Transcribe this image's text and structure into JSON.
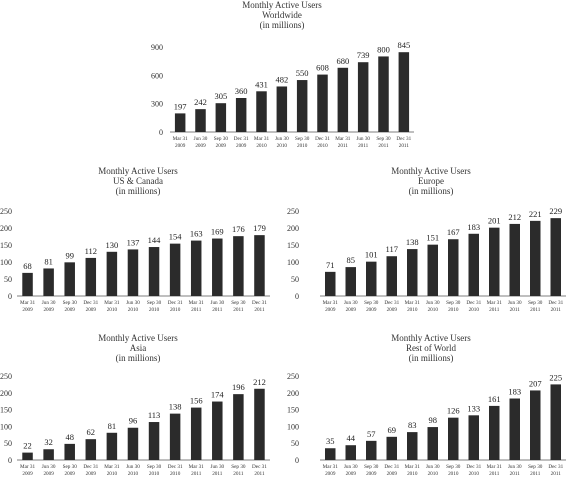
{
  "chart_data": [
    {
      "type": "bar",
      "title": [
        "Monthly Active Users",
        "Worldwide",
        "(in millions)"
      ],
      "categories": [
        [
          "Mar 31",
          "2009"
        ],
        [
          "Jun 30",
          "2009"
        ],
        [
          "Sep 30",
          "2009"
        ],
        [
          "Dec 31",
          "2009"
        ],
        [
          "Mar 31",
          "2010"
        ],
        [
          "Jun 30",
          "2010"
        ],
        [
          "Sep 30",
          "2010"
        ],
        [
          "Dec 31",
          "2010"
        ],
        [
          "Mar 31",
          "2011"
        ],
        [
          "Jun 30",
          "2011"
        ],
        [
          "Sep 30",
          "2011"
        ],
        [
          "Dec 31",
          "2011"
        ]
      ],
      "values": [
        197,
        242,
        305,
        360,
        431,
        482,
        550,
        608,
        680,
        739,
        800,
        845
      ],
      "yticks": [
        0,
        300,
        600,
        900
      ],
      "ylim": [
        0,
        900
      ],
      "grid": false,
      "bar_color": "#2b2b2b"
    },
    {
      "type": "bar",
      "title": [
        "Monthly Active Users",
        "US & Canada",
        "(in millions)"
      ],
      "categories": [
        [
          "Mar 31",
          "2009"
        ],
        [
          "Jun 30",
          "2009"
        ],
        [
          "Sep 30",
          "2009"
        ],
        [
          "Dec 31",
          "2009"
        ],
        [
          "Mar 31",
          "2010"
        ],
        [
          "Jun 30",
          "2010"
        ],
        [
          "Sep 30",
          "2010"
        ],
        [
          "Dec 31",
          "2010"
        ],
        [
          "Mar 31",
          "2011"
        ],
        [
          "Jun 30",
          "2011"
        ],
        [
          "Sep 30",
          "2011"
        ],
        [
          "Dec 31",
          "2011"
        ]
      ],
      "values": [
        68,
        81,
        99,
        112,
        130,
        137,
        144,
        154,
        163,
        169,
        176,
        179
      ],
      "yticks": [
        0,
        50,
        100,
        150,
        200,
        250
      ],
      "ylim": [
        0,
        250
      ],
      "grid": false,
      "bar_color": "#2b2b2b"
    },
    {
      "type": "bar",
      "title": [
        "Monthly Active Users",
        "Europe",
        "(in millions)"
      ],
      "categories": [
        [
          "Mar 31",
          "2009"
        ],
        [
          "Jun 30",
          "2009"
        ],
        [
          "Sep 30",
          "2009"
        ],
        [
          "Dec 31",
          "2009"
        ],
        [
          "Mar 31",
          "2010"
        ],
        [
          "Jun 30",
          "2010"
        ],
        [
          "Sep 30",
          "2010"
        ],
        [
          "Dec 31",
          "2010"
        ],
        [
          "Mar 31",
          "2011"
        ],
        [
          "Jun 30",
          "2011"
        ],
        [
          "Sep 30",
          "2011"
        ],
        [
          "Dec 31",
          "2011"
        ]
      ],
      "values": [
        71,
        85,
        101,
        117,
        138,
        151,
        167,
        183,
        201,
        212,
        221,
        229
      ],
      "yticks": [
        0,
        50,
        100,
        150,
        200,
        250
      ],
      "ylim": [
        0,
        250
      ],
      "grid": false,
      "bar_color": "#2b2b2b"
    },
    {
      "type": "bar",
      "title": [
        "Monthly Active Users",
        "Asia",
        "(in millions)"
      ],
      "categories": [
        [
          "Mar 31",
          "2009"
        ],
        [
          "Jun 30",
          "2009"
        ],
        [
          "Sep 30",
          "2009"
        ],
        [
          "Dec 31",
          "2009"
        ],
        [
          "Mar 31",
          "2010"
        ],
        [
          "Jun 30",
          "2010"
        ],
        [
          "Sep 30",
          "2010"
        ],
        [
          "Dec 31",
          "2010"
        ],
        [
          "Mar 31",
          "2011"
        ],
        [
          "Jun 30",
          "2011"
        ],
        [
          "Sep 30",
          "2011"
        ],
        [
          "Dec 31",
          "2011"
        ]
      ],
      "values": [
        22,
        32,
        48,
        62,
        81,
        96,
        113,
        138,
        156,
        174,
        196,
        212
      ],
      "yticks": [
        0,
        50,
        100,
        150,
        200,
        250
      ],
      "ylim": [
        0,
        250
      ],
      "grid": false,
      "bar_color": "#2b2b2b"
    },
    {
      "type": "bar",
      "title": [
        "Monthly Active Users",
        "Rest of World",
        "(in millions)"
      ],
      "categories": [
        [
          "Mar 31",
          "2009"
        ],
        [
          "Jun 30",
          "2009"
        ],
        [
          "Sep 30",
          "2009"
        ],
        [
          "Dec 31",
          "2009"
        ],
        [
          "Mar 31",
          "2010"
        ],
        [
          "Jun 30",
          "2010"
        ],
        [
          "Sep 30",
          "2010"
        ],
        [
          "Dec 31",
          "2010"
        ],
        [
          "Mar 31",
          "2011"
        ],
        [
          "Jun 30",
          "2011"
        ],
        [
          "Sep 30",
          "2011"
        ],
        [
          "Dec 31",
          "2011"
        ]
      ],
      "values": [
        35,
        44,
        57,
        69,
        83,
        98,
        126,
        133,
        161,
        183,
        207,
        225
      ],
      "yticks": [
        0,
        50,
        100,
        150,
        200,
        250
      ],
      "ylim": [
        0,
        250
      ],
      "grid": false,
      "bar_color": "#2b2b2b"
    }
  ]
}
